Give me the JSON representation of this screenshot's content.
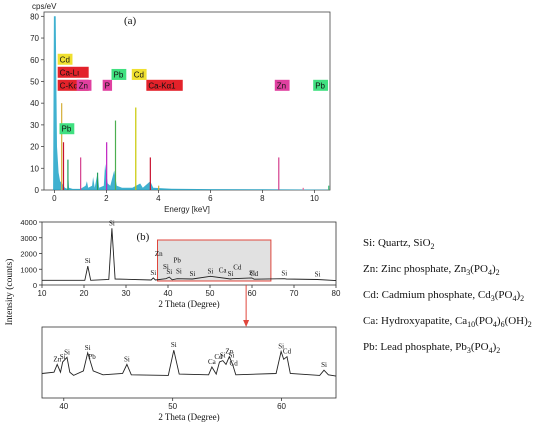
{
  "chart_data": [
    {
      "type": "bar",
      "panel_label": "(a)",
      "ylabel": "cps/eV",
      "xlabel": "Energy [keV]",
      "xlim": [
        -0.4,
        10.6
      ],
      "ylim": [
        0,
        82
      ],
      "x_ticks": [
        0,
        2,
        4,
        6,
        8,
        10
      ],
      "y_ticks": [
        0,
        10,
        20,
        30,
        40,
        50,
        60,
        70,
        80
      ],
      "peak_energy": [
        0.28,
        0.35,
        0.52,
        1.01,
        1.66,
        2.01,
        2.35,
        3.13,
        3.69,
        4.01,
        8.63,
        9.57,
        10.55
      ],
      "peak_cps": [
        40,
        22,
        14,
        15,
        8,
        22,
        32,
        38,
        15,
        2,
        15,
        1,
        2
      ],
      "peak_colors": [
        "#d4af37",
        "#c8102e",
        "#1f9e5a",
        "#d43f8d",
        "#1f9e5a",
        "#c020c0",
        "#4caf50",
        "#c8c800",
        "#c8102e",
        "#d4af37",
        "#d43f8d",
        "#e86a9a",
        "#40c080"
      ],
      "elements": [
        {
          "label": "Cd",
          "x": 0.28,
          "y": 60,
          "color": "#f0e030"
        },
        {
          "label": "Ca-Lı",
          "x": 0.28,
          "y": 54,
          "color": "#e3222a"
        },
        {
          "label": "C-Kα1",
          "x": 0.28,
          "y": 48,
          "color": "#e3222a"
        },
        {
          "label": "Zn",
          "x": 1.01,
          "y": 48,
          "color": "#e040a0"
        },
        {
          "label": "Pb",
          "x": 0.35,
          "y": 28,
          "color": "#40e080"
        },
        {
          "label": "P",
          "x": 2.01,
          "y": 48,
          "color": "#e040a0"
        },
        {
          "label": "Pb",
          "x": 2.35,
          "y": 53,
          "color": "#40e080"
        },
        {
          "label": "Cd",
          "x": 3.13,
          "y": 53,
          "color": "#f0e030"
        },
        {
          "label": "Ca-Kα1",
          "x": 3.69,
          "y": 48,
          "color": "#e3222a"
        },
        {
          "label": "Zn",
          "x": 8.63,
          "y": 48,
          "color": "#e040a0"
        },
        {
          "label": "Pb",
          "x": 10.55,
          "y": 48,
          "color": "#40e080"
        }
      ]
    },
    {
      "type": "line",
      "panel_label": "(b)",
      "ylabel": "Intensity (counts)",
      "xlabel": "2 Theta (Degree)",
      "xlim": [
        10,
        80
      ],
      "ylim": [
        0,
        4000
      ],
      "x_ticks": [
        10,
        20,
        30,
        40,
        50,
        60,
        70,
        80
      ],
      "y_ticks": [
        0,
        1000,
        2000,
        3000,
        4000
      ],
      "highlight_range": [
        37.5,
        64.5
      ],
      "x": [
        10,
        20.2,
        20.9,
        21.6,
        25.9,
        26.65,
        27.4,
        36,
        36.5,
        37,
        39.5,
        40.3,
        41,
        42.2,
        45.8,
        50.1,
        54.9,
        55.3,
        59.96,
        60.5,
        67.7,
        68.2,
        75.6,
        80
      ],
      "y": [
        300,
        300,
        1200,
        300,
        350,
        3600,
        380,
        320,
        450,
        320,
        400,
        500,
        330,
        400,
        380,
        550,
        380,
        400,
        450,
        370,
        400,
        380,
        350,
        280
      ],
      "annotations": [
        {
          "label": "Si",
          "x": 20.9,
          "y": 1200
        },
        {
          "label": "Si",
          "x": 26.65,
          "y": 3600
        },
        {
          "label": "Zn",
          "x": 37.8,
          "y": 1650
        },
        {
          "label": "Si",
          "x": 36.5,
          "y": 450
        },
        {
          "label": "Si",
          "x": 39.5,
          "y": 830
        },
        {
          "label": "Si",
          "x": 40.3,
          "y": 500
        },
        {
          "label": "Pb",
          "x": 42.2,
          "y": 1250
        },
        {
          "label": "Si",
          "x": 42.6,
          "y": 550
        },
        {
          "label": "Si",
          "x": 45.8,
          "y": 380
        },
        {
          "label": "Si",
          "x": 50.1,
          "y": 550
        },
        {
          "label": "Ca",
          "x": 53,
          "y": 600
        },
        {
          "label": "Si",
          "x": 54.9,
          "y": 380
        },
        {
          "label": "Cd",
          "x": 56.5,
          "y": 800
        },
        {
          "label": "Si",
          "x": 60,
          "y": 450
        },
        {
          "label": "Cd",
          "x": 60.5,
          "y": 370
        },
        {
          "label": "Si",
          "x": 67.7,
          "y": 400
        },
        {
          "label": "Si",
          "x": 75.6,
          "y": 350
        }
      ]
    },
    {
      "type": "line",
      "xlabel": "2 Theta (Degree)",
      "xlim": [
        38,
        65
      ],
      "ylim": [
        0,
        1100
      ],
      "x_ticks": [
        40,
        50,
        60
      ],
      "x": [
        38,
        39.1,
        39.4,
        39.7,
        39.9,
        40.3,
        40.55,
        40.9,
        41.8,
        42.2,
        42.7,
        43.6,
        45.4,
        45.8,
        46.2,
        49.6,
        50.1,
        50.6,
        53.3,
        53.6,
        54,
        54.3,
        54.6,
        54.9,
        55.2,
        55.5,
        55.8,
        59.5,
        59.96,
        60.2,
        60.5,
        60.8,
        63.5,
        63.9,
        64.3,
        65
      ],
      "y": [
        380,
        400,
        520,
        400,
        560,
        630,
        400,
        350,
        420,
        700,
        420,
        360,
        380,
        520,
        360,
        350,
        740,
        370,
        360,
        480,
        370,
        560,
        580,
        520,
        640,
        520,
        360,
        380,
        720,
        600,
        640,
        380,
        350,
        430,
        360,
        340
      ],
      "annotations": [
        {
          "label": "Zn",
          "x": 39.4,
          "y": 520
        },
        {
          "label": "Si",
          "x": 39.9,
          "y": 560
        },
        {
          "label": "Si",
          "x": 40.3,
          "y": 630
        },
        {
          "label": "Si",
          "x": 42.2,
          "y": 700
        },
        {
          "label": "Pb",
          "x": 42.6,
          "y": 560
        },
        {
          "label": "Si",
          "x": 45.8,
          "y": 520
        },
        {
          "label": "Si",
          "x": 50.1,
          "y": 740
        },
        {
          "label": "Ca",
          "x": 53.6,
          "y": 480
        },
        {
          "label": "Cd",
          "x": 54.2,
          "y": 560
        },
        {
          "label": "Si",
          "x": 54.6,
          "y": 580
        },
        {
          "label": "Zn",
          "x": 55.2,
          "y": 640
        },
        {
          "label": "Si",
          "x": 55.4,
          "y": 580
        },
        {
          "label": "Cd",
          "x": 55.6,
          "y": 460
        },
        {
          "label": "Si",
          "x": 59.96,
          "y": 720
        },
        {
          "label": "Cd",
          "x": 60.5,
          "y": 640
        },
        {
          "label": "Si",
          "x": 63.9,
          "y": 430
        }
      ]
    }
  ],
  "legend": [
    {
      "prefix": "Si: Quartz, SiO",
      "sub": "2"
    },
    {
      "prefix": "Zn: Zinc phosphate, Zn",
      "sub": "3",
      "mid": "(PO",
      "sub2": "4",
      "end": ")",
      "sub3": "2"
    },
    {
      "prefix": "Cd: Cadmium phosphate, Cd",
      "sub": "3",
      "mid": "(PO",
      "sub2": "4",
      "end": ")",
      "sub3": "2"
    },
    {
      "prefix": "Ca: Hydroxyapatite, Ca",
      "sub": "10",
      "mid": "(PO",
      "sub2": "4",
      "end": ")",
      "sub3": "6",
      "tail": "(OH)",
      "sub4": "2"
    },
    {
      "prefix": "Pb: Lead phosphate, Pb",
      "sub": "3",
      "mid": "(PO",
      "sub2": "4",
      "end": ")",
      "sub3": "2"
    }
  ]
}
